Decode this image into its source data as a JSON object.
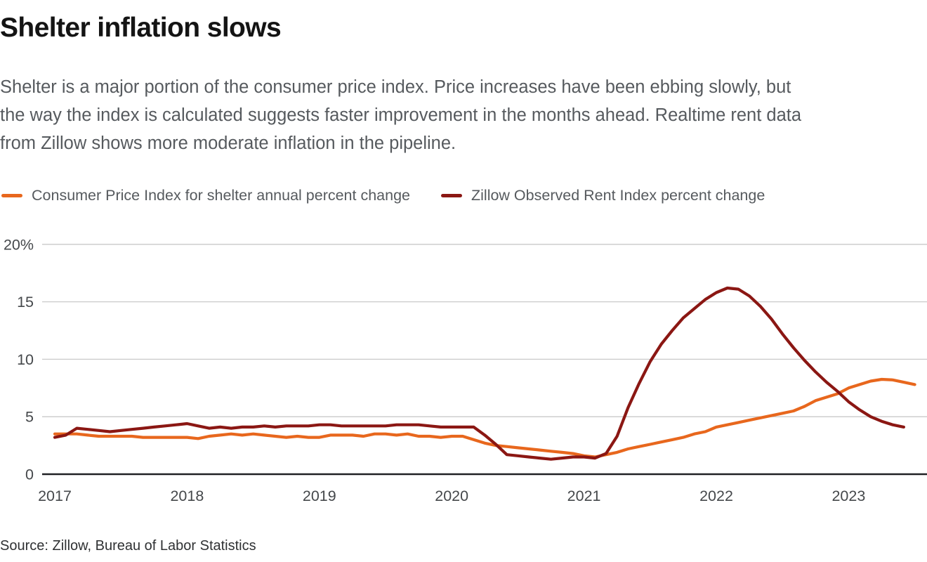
{
  "header": {
    "title": "Shelter inflation slows",
    "description_lines": [
      "Shelter is a major portion of the consumer price index. Price increases have been ebbing slowly, but",
      "the way the index is calculated suggests faster improvement in the months ahead. Realtime rent data",
      "from Zillow shows more moderate inflation in the pipeline."
    ]
  },
  "footer": {
    "source": "Source: Zillow, Bureau of Labor Statistics"
  },
  "colors": {
    "cpi_orange": "#e8671d",
    "zillow_dark_red": "#8b1713",
    "gridline": "#c9c9c9",
    "axis_line": "#202124",
    "tick_label": "#45484b"
  },
  "chart_data": {
    "type": "line",
    "title": "Shelter inflation slows",
    "x_unit": "month",
    "x_start": "2017-01",
    "x_tick_labels": [
      "2017",
      "2018",
      "2019",
      "2020",
      "2021",
      "2022",
      "2023"
    ],
    "y_ticks": [
      {
        "value": 0,
        "label": "0"
      },
      {
        "value": 5,
        "label": "5"
      },
      {
        "value": 10,
        "label": "10"
      },
      {
        "value": 15,
        "label": "15"
      },
      {
        "value": 20,
        "label": "20%"
      }
    ],
    "ylim": [
      0,
      21.7
    ],
    "grid": "horizontal",
    "legend_position": "top",
    "series": [
      {
        "name": "Consumer Price Index for shelter annual percent change",
        "color": "#e8671d",
        "monthly_values": [
          3.5,
          3.5,
          3.5,
          3.4,
          3.3,
          3.3,
          3.3,
          3.3,
          3.2,
          3.2,
          3.2,
          3.2,
          3.2,
          3.1,
          3.3,
          3.4,
          3.5,
          3.4,
          3.5,
          3.4,
          3.3,
          3.2,
          3.3,
          3.2,
          3.2,
          3.4,
          3.4,
          3.4,
          3.3,
          3.5,
          3.5,
          3.4,
          3.5,
          3.3,
          3.3,
          3.2,
          3.3,
          3.3,
          3.0,
          2.7,
          2.5,
          2.4,
          2.3,
          2.2,
          2.1,
          2.0,
          1.9,
          1.8,
          1.6,
          1.5,
          1.7,
          1.9,
          2.2,
          2.4,
          2.6,
          2.8,
          3.0,
          3.2,
          3.5,
          3.7,
          4.1,
          4.3,
          4.5,
          4.7,
          4.9,
          5.1,
          5.3,
          5.5,
          5.9,
          6.4,
          6.7,
          7.0,
          7.5,
          7.8,
          8.1,
          8.25,
          8.2,
          8.0,
          7.8
        ]
      },
      {
        "name": "Zillow Observed Rent Index percent change",
        "color": "#8b1713",
        "monthly_values": [
          3.2,
          3.4,
          4.0,
          3.9,
          3.8,
          3.7,
          3.8,
          3.9,
          4.0,
          4.1,
          4.2,
          4.3,
          4.4,
          4.2,
          4.0,
          4.1,
          4.0,
          4.1,
          4.1,
          4.2,
          4.1,
          4.2,
          4.2,
          4.2,
          4.3,
          4.3,
          4.2,
          4.2,
          4.2,
          4.2,
          4.2,
          4.3,
          4.3,
          4.3,
          4.2,
          4.1,
          4.1,
          4.1,
          4.1,
          3.4,
          2.6,
          1.7,
          1.6,
          1.5,
          1.4,
          1.3,
          1.4,
          1.5,
          1.5,
          1.4,
          1.8,
          3.3,
          5.8,
          7.9,
          9.8,
          11.3,
          12.5,
          13.6,
          14.4,
          15.2,
          15.8,
          16.2,
          16.1,
          15.5,
          14.6,
          13.5,
          12.2,
          11.0,
          9.9,
          8.9,
          8.0,
          7.2,
          6.3,
          5.6,
          5.0,
          4.6,
          4.3,
          4.1
        ]
      }
    ]
  }
}
